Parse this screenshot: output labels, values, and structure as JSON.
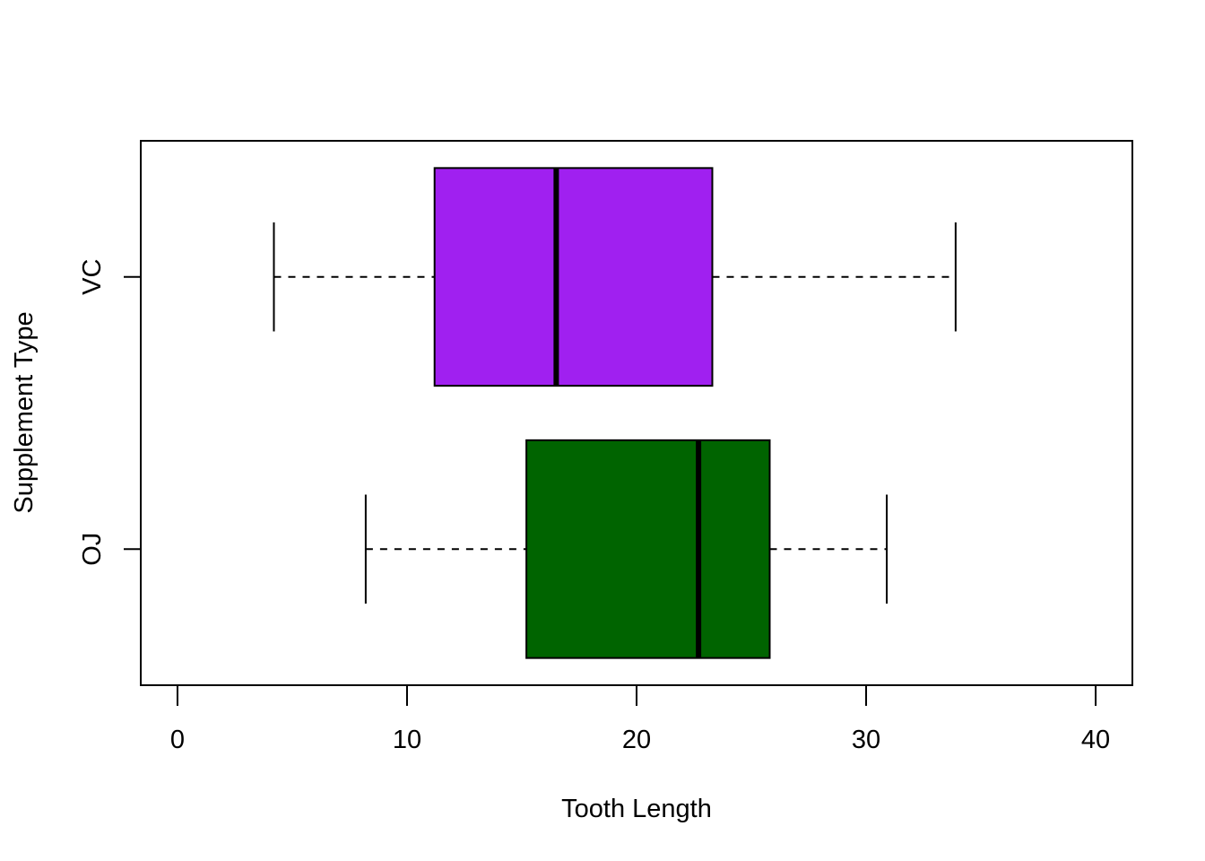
{
  "chart_data": {
    "type": "boxplot",
    "orientation": "horizontal",
    "title": "",
    "xlabel": "Tooth Length",
    "ylabel": "Supplement Type",
    "xlim": [
      -1.6,
      41.6
    ],
    "xticks": [
      0,
      10,
      20,
      30,
      40
    ],
    "xtick_labels": [
      "0",
      "10",
      "20",
      "30",
      "40"
    ],
    "grid": false,
    "legend": "none",
    "categories": [
      "OJ",
      "VC"
    ],
    "boxes": [
      {
        "category": "OJ",
        "whisker_low": 8.2,
        "q1": 15.2,
        "median": 22.7,
        "q3": 25.8,
        "whisker_high": 30.9,
        "color": "#006400"
      },
      {
        "category": "VC",
        "whisker_low": 4.2,
        "q1": 11.2,
        "median": 16.5,
        "q3": 23.3,
        "whisker_high": 33.9,
        "color": "#A020F0"
      }
    ]
  }
}
